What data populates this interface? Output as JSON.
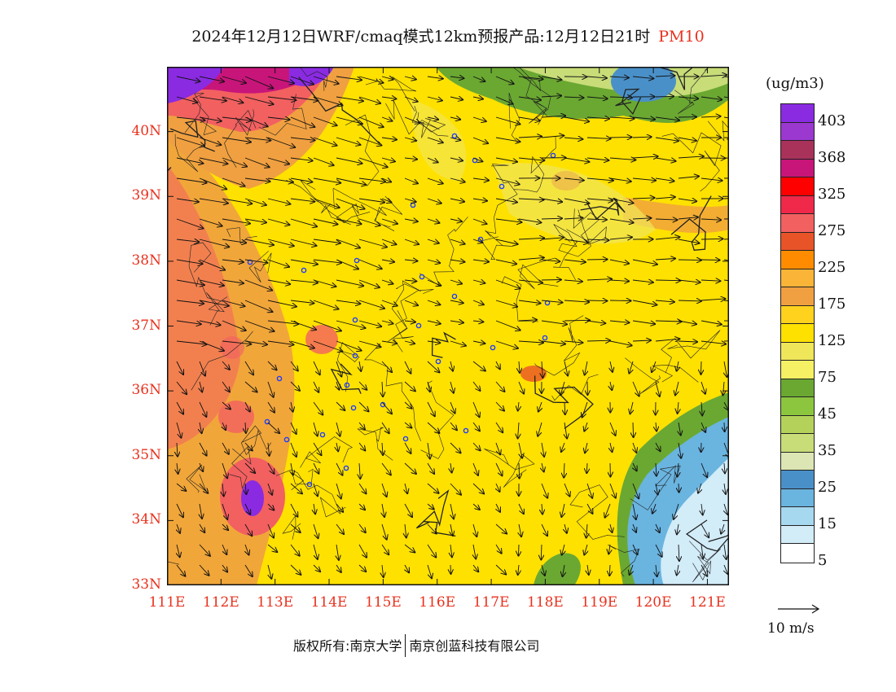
{
  "title": {
    "main": "2024年12月12日WRF/cmaq模式12km预报产品:12月12日21时",
    "variable": "PM10"
  },
  "axes": {
    "lat_labels": [
      "40N",
      "39N",
      "38N",
      "37N",
      "36N",
      "35N",
      "34N",
      "33N"
    ],
    "lon_labels": [
      "111E",
      "112E",
      "113E",
      "114E",
      "115E",
      "116E",
      "117E",
      "118E",
      "119E",
      "120E",
      "121E"
    ],
    "lat_values": [
      40,
      39,
      38,
      37,
      36,
      35,
      34,
      33
    ],
    "lon_values": [
      111,
      112,
      113,
      114,
      115,
      116,
      117,
      118,
      119,
      120,
      121
    ],
    "lat_range": [
      33,
      41
    ],
    "lon_range": [
      111,
      121.4
    ]
  },
  "legend": {
    "unit": "(ug/m3)",
    "labels": [
      "403",
      "368",
      "325",
      "275",
      "225",
      "175",
      "125",
      "75",
      "45",
      "35",
      "25",
      "15",
      "5"
    ],
    "colors": [
      "#8a2be2",
      "#9b38d0",
      "#a8325a",
      "#c8157a",
      "#ff0000",
      "#f0284a",
      "#f26060",
      "#e85428",
      "#ff8c00",
      "#fab437",
      "#f0a040",
      "#ffd21e",
      "#ffe100",
      "#f0e65a",
      "#f5f064",
      "#6aa832",
      "#8cc63f",
      "#b4d25a",
      "#c8dc78",
      "#dce6b4",
      "#4a90c8",
      "#6ab4e0",
      "#a6d8f0",
      "#d2ecf8",
      "#ffffff"
    ]
  },
  "reference_vector": {
    "label": "10 m/s"
  },
  "copyright": {
    "text": "版权所有:南京大学",
    "company": "南京创蓝科技有限公司"
  }
}
